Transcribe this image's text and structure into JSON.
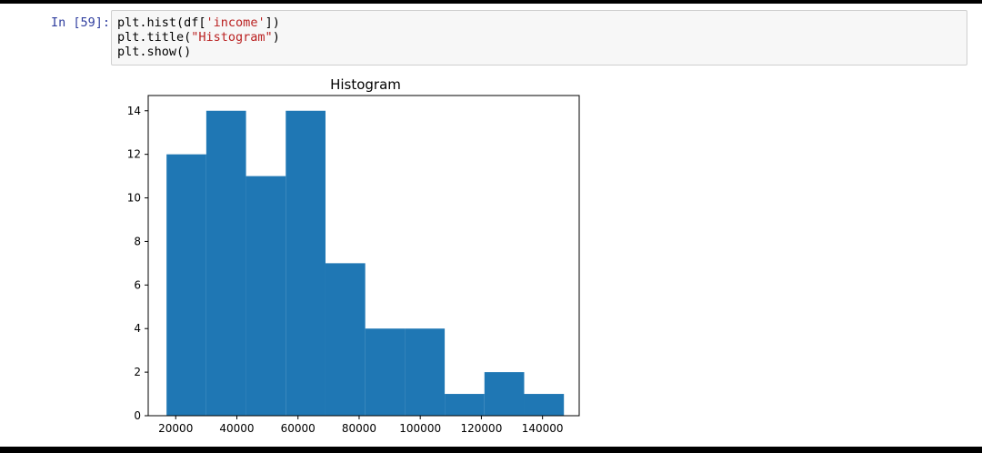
{
  "cell": {
    "prompt": "In [59]:",
    "code": {
      "line1": {
        "pre": "plt.hist(df[",
        "str": "'income'",
        "post": "])"
      },
      "line2": {
        "pre": "plt.title(",
        "str": "\"Histogram\"",
        "post": ")"
      },
      "line3": "plt.show()"
    }
  },
  "chart_data": {
    "type": "bar",
    "title": "Histogram",
    "xlabel": "",
    "ylabel": "",
    "xlim": [
      11000,
      152000
    ],
    "ylim": [
      0,
      14.7
    ],
    "bin_edges": [
      17000,
      30000,
      43000,
      56000,
      69000,
      82000,
      95000,
      108000,
      121000,
      134000,
      147000
    ],
    "values": [
      12,
      14,
      11,
      14,
      7,
      4,
      4,
      1,
      2,
      1
    ],
    "xticks": [
      20000,
      40000,
      60000,
      80000,
      100000,
      120000,
      140000
    ],
    "yticks": [
      0,
      2,
      4,
      6,
      8,
      10,
      12,
      14
    ],
    "bar_color": "#1f77b4",
    "grid": false
  }
}
